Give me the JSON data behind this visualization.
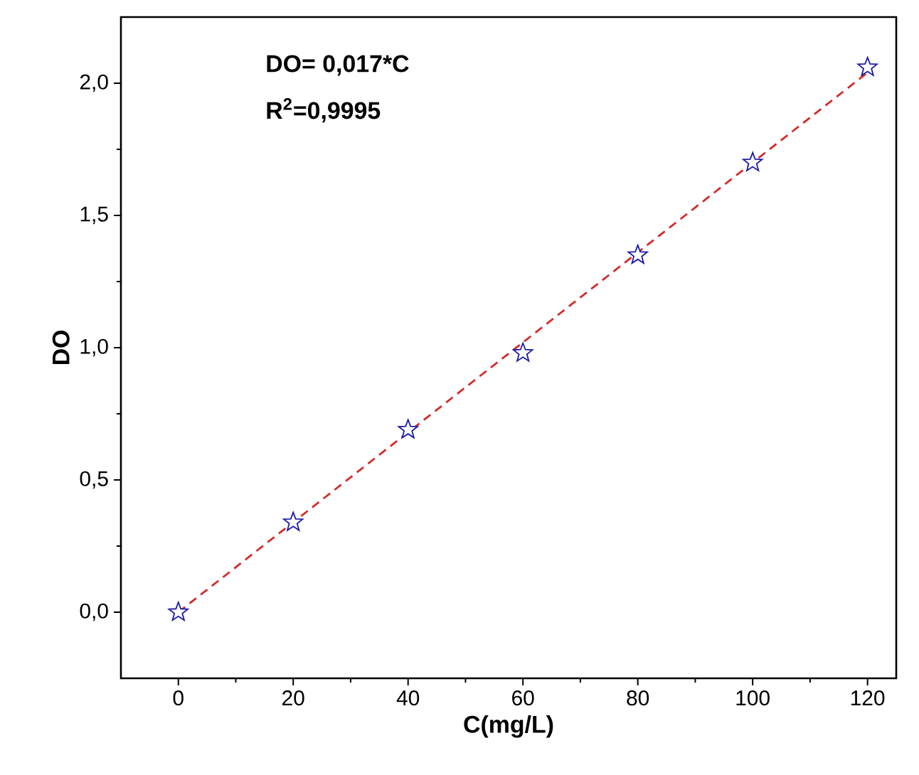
{
  "chart_data": {
    "type": "scatter",
    "xlabel": "C(mg/L)",
    "ylabel": "DO",
    "x": [
      0,
      20,
      40,
      60,
      80,
      100,
      120
    ],
    "series": [
      {
        "color": "#1a1aa8",
        "marker": "star",
        "values": [
          0,
          0.34,
          0.69,
          0.98,
          1.35,
          1.7,
          2.06
        ]
      },
      {
        "type": "line",
        "color": "#d42a2a",
        "line_style": "dashed",
        "marker": "none",
        "x": [
          0,
          120
        ],
        "values": [
          0,
          2.04
        ]
      }
    ],
    "annotations": [
      "**DO= 0,017*C**",
      "**R$^{2}$=0,9995**"
    ],
    "xlim": [
      -10,
      125
    ],
    "ylim": [
      -0.25,
      2.25
    ],
    "xticks": [
      0,
      20,
      40,
      60,
      80,
      100,
      120
    ],
    "yticks": [
      {
        "value": 0,
        "label": "0,0"
      },
      {
        "value": 0.5,
        "label": "0,5"
      },
      {
        "value": 1,
        "label": "1,0"
      },
      {
        "value": 1.5,
        "label": "1,5"
      },
      {
        "value": 2,
        "label": "2,0"
      }
    ]
  }
}
